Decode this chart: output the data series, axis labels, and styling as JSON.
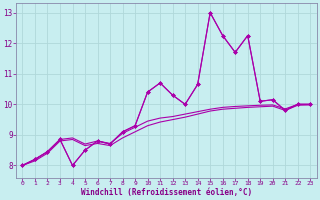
{
  "background_color": "#c8eef0",
  "grid_color": "#b0d8da",
  "line_color": "#aa00aa",
  "marker_color": "#aa00aa",
  "xlabel": "Windchill (Refroidissement éolien,°C)",
  "xlabel_color": "#880088",
  "tick_color": "#880088",
  "spine_color": "#8888aa",
  "xlim": [
    -0.5,
    23.5
  ],
  "ylim": [
    7.6,
    13.3
  ],
  "yticks": [
    8,
    9,
    10,
    11,
    12,
    13
  ],
  "xticks": [
    0,
    1,
    2,
    3,
    4,
    5,
    6,
    7,
    8,
    9,
    10,
    11,
    12,
    13,
    14,
    15,
    16,
    17,
    18,
    19,
    20,
    21,
    22,
    23
  ],
  "line1_x": [
    0,
    1,
    2,
    3,
    4,
    5,
    6,
    7,
    8,
    9,
    10,
    11,
    12,
    13,
    14,
    15,
    16,
    17,
    18,
    19,
    20,
    21,
    22,
    23
  ],
  "line1_y": [
    8.0,
    8.2,
    8.45,
    8.85,
    8.0,
    8.5,
    8.8,
    8.7,
    9.1,
    9.3,
    10.4,
    10.7,
    10.3,
    10.0,
    10.65,
    13.0,
    12.25,
    11.7,
    12.25,
    10.1,
    10.15,
    9.8,
    10.0,
    10.0
  ],
  "line2_x": [
    0,
    1,
    2,
    3,
    4,
    5,
    6,
    7,
    8,
    9,
    10,
    11,
    12,
    13,
    14,
    15,
    16,
    17,
    18,
    19,
    20,
    21,
    22,
    23
  ],
  "line2_y": [
    8.0,
    8.2,
    8.45,
    8.85,
    8.9,
    8.7,
    8.8,
    8.72,
    9.05,
    9.25,
    9.45,
    9.55,
    9.6,
    9.68,
    9.76,
    9.84,
    9.9,
    9.93,
    9.95,
    9.97,
    9.98,
    9.85,
    10.0,
    10.0
  ],
  "line3_x": [
    0,
    1,
    2,
    3,
    4,
    5,
    6,
    7,
    8,
    9,
    10,
    11,
    12,
    13,
    14,
    15,
    16,
    17,
    18,
    19,
    20,
    21,
    22,
    23
  ],
  "line3_y": [
    8.0,
    8.15,
    8.4,
    8.8,
    8.85,
    8.65,
    8.72,
    8.65,
    8.9,
    9.1,
    9.3,
    9.42,
    9.5,
    9.58,
    9.68,
    9.78,
    9.84,
    9.87,
    9.9,
    9.92,
    9.94,
    9.8,
    9.97,
    9.98
  ],
  "line4_x": [
    0,
    1,
    2,
    3,
    4,
    5,
    6,
    7,
    8,
    9,
    10,
    11,
    12,
    13,
    14,
    15,
    16,
    17,
    18,
    19,
    20,
    21,
    22,
    23
  ],
  "line4_y": [
    8.0,
    8.2,
    8.45,
    8.85,
    8.0,
    8.5,
    8.8,
    8.7,
    9.1,
    9.3,
    10.4,
    10.7,
    10.3,
    10.0,
    10.65,
    13.0,
    12.25,
    11.7,
    12.25,
    10.1,
    10.15,
    9.8,
    10.0,
    10.0
  ]
}
